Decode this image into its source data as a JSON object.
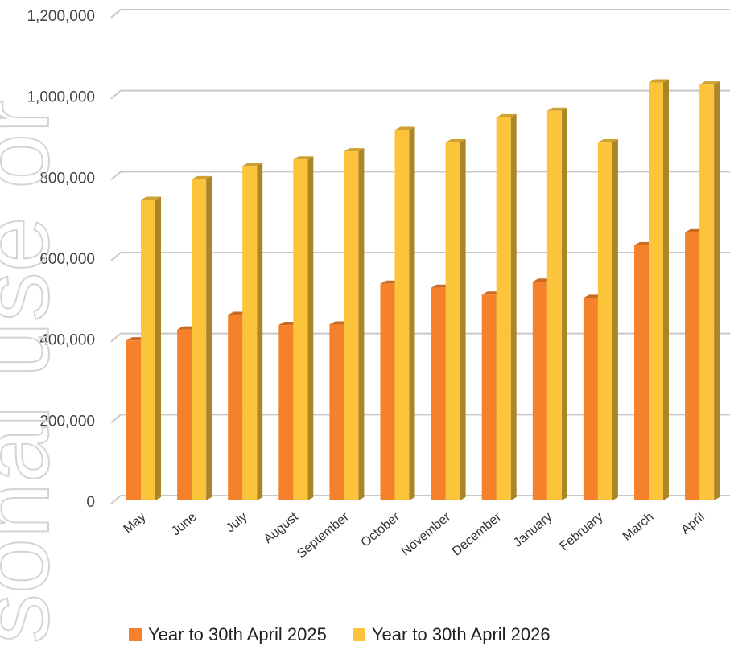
{
  "watermark": "sonal use or",
  "chart_data": {
    "type": "bar",
    "categories": [
      "May",
      "June",
      "July",
      "August",
      "September",
      "October",
      "November",
      "December",
      "January",
      "February",
      "March",
      "April"
    ],
    "series": [
      {
        "name": "Year to 30th April 2025",
        "color": "#f5822a",
        "values": [
          395000,
          422000,
          458000,
          433000,
          434000,
          535000,
          525000,
          508000,
          540000,
          500000,
          630000,
          662000
        ]
      },
      {
        "name": "Year to 30th April 2026",
        "color": "#fcc43b",
        "values": [
          742000,
          793000,
          826000,
          842000,
          862000,
          915000,
          884000,
          946000,
          962000,
          884000,
          1032000,
          1027000
        ]
      }
    ],
    "ylim": [
      0,
      1200000
    ],
    "yticks": [
      0,
      200000,
      400000,
      600000,
      800000,
      1000000,
      1200000
    ],
    "ytick_labels": [
      "0",
      "200,000",
      "400,000",
      "600,000",
      "800,000",
      "1,000,000",
      "1,200,000"
    ],
    "grid": true,
    "legend_position": "bottom",
    "style": "3d-columns"
  }
}
